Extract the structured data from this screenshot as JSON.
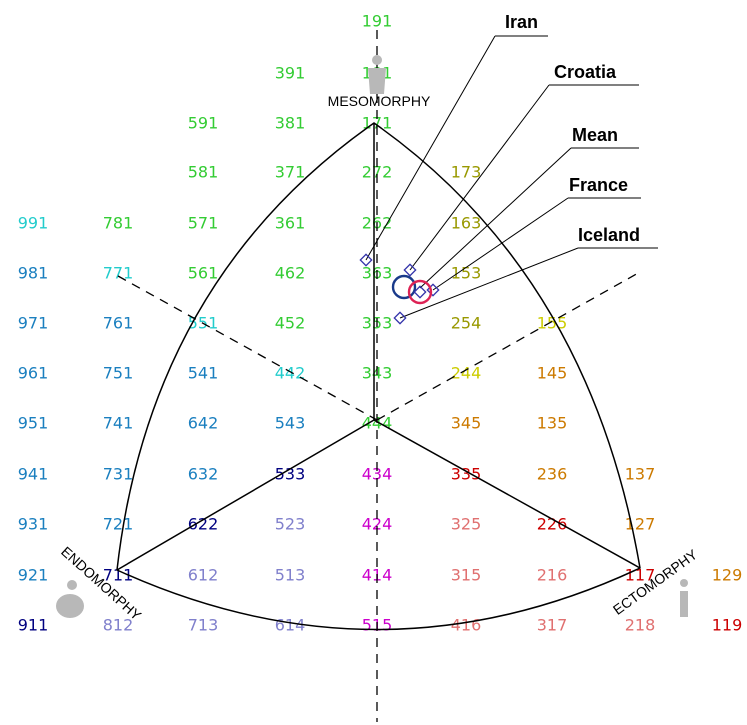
{
  "labels": {
    "mesomorphy": "MESOMORPHY",
    "endomorphy": "ENDOMORPHY",
    "ectomorphy": "ECTOMORPHY"
  },
  "colors": {
    "green": "#33cc33",
    "olive": "#999900",
    "yellow": "#cccc00",
    "orange": "#cc7a00",
    "red": "#cc0000",
    "pink": "#e07070",
    "magenta": "#cc00cc",
    "lavender": "#8080cc",
    "navy": "#000080",
    "blue": "#1a7fbf",
    "cyan": "#22cccc",
    "circle_blue": "#1a3a8a",
    "circle_red": "#dd2255",
    "marker": "#3333aa"
  },
  "grid_codes": [
    {
      "t": "191",
      "c": "green"
    },
    {
      "t": "391",
      "c": "green"
    },
    {
      "t": "181",
      "c": "green"
    },
    {
      "t": "591",
      "c": "green"
    },
    {
      "t": "381",
      "c": "green"
    },
    {
      "t": "171",
      "c": "green"
    },
    {
      "t": "581",
      "c": "green"
    },
    {
      "t": "371",
      "c": "green"
    },
    {
      "t": "272",
      "c": "green"
    },
    {
      "t": "173",
      "c": "olive"
    },
    {
      "t": "991",
      "c": "cyan"
    },
    {
      "t": "781",
      "c": "green"
    },
    {
      "t": "571",
      "c": "green"
    },
    {
      "t": "361",
      "c": "green"
    },
    {
      "t": "262",
      "c": "green"
    },
    {
      "t": "163",
      "c": "olive"
    },
    {
      "t": "981",
      "c": "blue"
    },
    {
      "t": "771",
      "c": "cyan"
    },
    {
      "t": "561",
      "c": "green"
    },
    {
      "t": "462",
      "c": "green"
    },
    {
      "t": "363",
      "c": "green"
    },
    {
      "t": "153",
      "c": "olive"
    },
    {
      "t": "971",
      "c": "blue"
    },
    {
      "t": "761",
      "c": "blue"
    },
    {
      "t": "551",
      "c": "cyan"
    },
    {
      "t": "452",
      "c": "green"
    },
    {
      "t": "353",
      "c": "green"
    },
    {
      "t": "254",
      "c": "olive"
    },
    {
      "t": "155",
      "c": "yellow"
    },
    {
      "t": "961",
      "c": "blue"
    },
    {
      "t": "751",
      "c": "blue"
    },
    {
      "t": "541",
      "c": "blue"
    },
    {
      "t": "442",
      "c": "cyan"
    },
    {
      "t": "343",
      "c": "green"
    },
    {
      "t": "244",
      "c": "yellow"
    },
    {
      "t": "145",
      "c": "orange"
    },
    {
      "t": "951",
      "c": "blue"
    },
    {
      "t": "741",
      "c": "blue"
    },
    {
      "t": "642",
      "c": "blue"
    },
    {
      "t": "543",
      "c": "blue"
    },
    {
      "t": "444",
      "c": "green"
    },
    {
      "t": "345",
      "c": "orange"
    },
    {
      "t": "135",
      "c": "orange"
    },
    {
      "t": "941",
      "c": "blue"
    },
    {
      "t": "731",
      "c": "blue"
    },
    {
      "t": "632",
      "c": "blue"
    },
    {
      "t": "533",
      "c": "navy"
    },
    {
      "t": "434",
      "c": "magenta"
    },
    {
      "t": "335",
      "c": "red"
    },
    {
      "t": "236",
      "c": "orange"
    },
    {
      "t": "137",
      "c": "orange"
    },
    {
      "t": "931",
      "c": "blue"
    },
    {
      "t": "721",
      "c": "blue"
    },
    {
      "t": "622",
      "c": "navy"
    },
    {
      "t": "523",
      "c": "lavender"
    },
    {
      "t": "424",
      "c": "magenta"
    },
    {
      "t": "325",
      "c": "pink"
    },
    {
      "t": "226",
      "c": "red"
    },
    {
      "t": "127",
      "c": "orange"
    },
    {
      "t": "921",
      "c": "blue"
    },
    {
      "t": "711",
      "c": "navy"
    },
    {
      "t": "612",
      "c": "lavender"
    },
    {
      "t": "513",
      "c": "lavender"
    },
    {
      "t": "414",
      "c": "magenta"
    },
    {
      "t": "315",
      "c": "pink"
    },
    {
      "t": "216",
      "c": "pink"
    },
    {
      "t": "117",
      "c": "red"
    },
    {
      "t": "129",
      "c": "orange"
    },
    {
      "t": "911",
      "c": "navy"
    },
    {
      "t": "812",
      "c": "lavender"
    },
    {
      "t": "713",
      "c": "lavender"
    },
    {
      "t": "614",
      "c": "lavender"
    },
    {
      "t": "515",
      "c": "magenta"
    },
    {
      "t": "416",
      "c": "pink"
    },
    {
      "t": "317",
      "c": "pink"
    },
    {
      "t": "218",
      "c": "pink"
    },
    {
      "t": "119",
      "c": "red"
    }
  ],
  "countries": [
    {
      "name": "Iran"
    },
    {
      "name": "Croatia"
    },
    {
      "name": "Mean"
    },
    {
      "name": "France"
    },
    {
      "name": "Iceland"
    }
  ]
}
